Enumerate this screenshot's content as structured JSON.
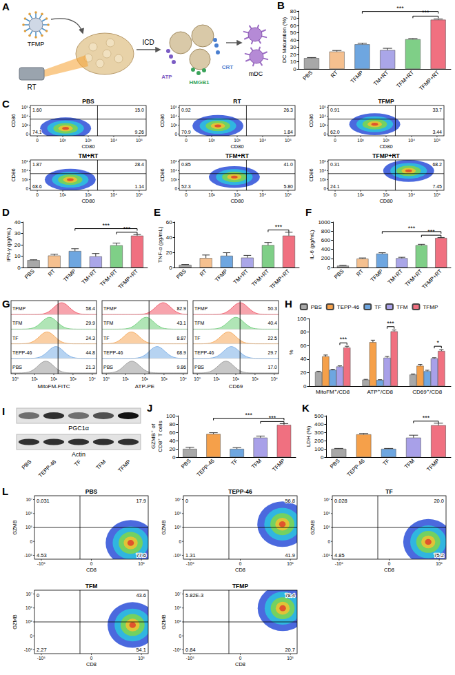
{
  "diagram": {
    "panel": "A",
    "particle": "TFMP",
    "radiation": "RT",
    "process": "ICD",
    "signals": [
      {
        "label": "ATP",
        "color": "#7b5cc4"
      },
      {
        "label": "HMGB1",
        "color": "#3aa35a"
      },
      {
        "label": "CRT",
        "color": "#4a7fd0"
      }
    ],
    "product": "mDC"
  },
  "chart_data": [
    {
      "panel": "B",
      "type": "bar",
      "y_label": "DC Maturation (%)",
      "categories": [
        "PBS",
        "RT",
        "TFMP",
        "TM+RT",
        "TFM+RT",
        "TFMP+RT"
      ],
      "values": [
        15,
        24,
        34,
        26,
        41,
        68
      ],
      "errors": [
        0.8,
        1.5,
        1.5,
        2.5,
        1,
        1
      ],
      "colors": [
        "#a8a8a8",
        "#f5c08f",
        "#6ea6e0",
        "#aaa6e8",
        "#7fcf87",
        "#f07080"
      ],
      "ylim": [
        0,
        80
      ],
      "yticks": [
        0,
        10,
        20,
        30,
        40,
        50,
        60,
        70,
        80
      ],
      "grid": false,
      "annotations": [
        {
          "text": "***",
          "from": "TFM+RT",
          "to": "TFMP+RT"
        },
        {
          "text": "***",
          "from": "TFMP",
          "to": "TFMP+RT"
        }
      ]
    },
    {
      "panel": "D",
      "type": "bar",
      "y_label": "IFN-γ (pg/mL)",
      "categories": [
        "PBS",
        "RT",
        "TFMP",
        "TM+RT",
        "TFM+RT",
        "TFMP+RT"
      ],
      "values": [
        6.5,
        10.5,
        14.5,
        9.8,
        19.5,
        28
      ],
      "errors": [
        0.3,
        1.2,
        2,
        2.5,
        2,
        1
      ],
      "colors": [
        "#a8a8a8",
        "#f5c08f",
        "#6ea6e0",
        "#aaa6e8",
        "#7fcf87",
        "#f07080"
      ],
      "ylim": [
        0,
        40
      ],
      "yticks": [
        0,
        10,
        20,
        30,
        40
      ],
      "grid": false,
      "annotations": [
        {
          "text": "***",
          "from": "TFM+RT",
          "to": "TFMP+RT"
        },
        {
          "text": "***",
          "from": "TFMP",
          "to": "TFMP+RT"
        }
      ]
    },
    {
      "panel": "E",
      "type": "bar",
      "y_label": "TNF-α (pg/mL)",
      "categories": [
        "PBS",
        "RT",
        "TFMP",
        "TM+RT",
        "TFM+RT",
        "TFMP+RT"
      ],
      "values": [
        3.5,
        12.5,
        15.5,
        13,
        29.5,
        42
      ],
      "errors": [
        0.5,
        4,
        4,
        3,
        3.5,
        4.5
      ],
      "colors": [
        "#a8a8a8",
        "#f5c08f",
        "#6ea6e0",
        "#aaa6e8",
        "#7fcf87",
        "#f07080"
      ],
      "ylim": [
        0,
        60
      ],
      "yticks": [
        0,
        20,
        40,
        60
      ],
      "grid": false,
      "annotations": [
        {
          "text": "***",
          "from": "TFM+RT",
          "to": "TFMP+RT"
        }
      ]
    },
    {
      "panel": "F",
      "type": "bar",
      "y_label": "IL-6 (pg/mL)",
      "categories": [
        "PBS",
        "RT",
        "TFMP",
        "TM+RT",
        "TFM+RT",
        "TFMP+RT"
      ],
      "values": [
        40,
        195,
        305,
        205,
        490,
        650
      ],
      "errors": [
        10,
        15,
        20,
        20,
        20,
        10
      ],
      "colors": [
        "#a8a8a8",
        "#f5c08f",
        "#6ea6e0",
        "#aaa6e8",
        "#7fcf87",
        "#f07080"
      ],
      "ylim": [
        0,
        1000
      ],
      "yticks": [
        0,
        200,
        400,
        600,
        800,
        1000
      ],
      "grid": false,
      "annotations": [
        {
          "text": "***",
          "from": "TFM+RT",
          "to": "TFMP+RT"
        },
        {
          "text": "***",
          "from": "TFMP",
          "to": "TFMP+RT"
        }
      ]
    },
    {
      "panel": "H",
      "type": "bar",
      "y_label": "%",
      "categories": [
        "MitoFM⁺/CD8",
        "ATP⁺/CD8",
        "CD69⁺/CD8"
      ],
      "series": [
        {
          "name": "PBS",
          "color": "#a8a8a8",
          "values": [
            21,
            9.5,
            17
          ],
          "errors": [
            1,
            0.5,
            1
          ]
        },
        {
          "name": "TEPP-46",
          "color": "#f5a04a",
          "values": [
            44,
            65,
            30
          ],
          "errors": [
            2,
            3,
            2
          ]
        },
        {
          "name": "TF",
          "color": "#6ea6e0",
          "values": [
            24,
            9,
            22
          ],
          "errors": [
            1,
            0.5,
            1.5
          ]
        },
        {
          "name": "TFM",
          "color": "#a8a0e8",
          "values": [
            29,
            42,
            41
          ],
          "errors": [
            1,
            2,
            1
          ]
        },
        {
          "name": "TFMP",
          "color": "#f07080",
          "values": [
            57,
            81,
            52
          ],
          "errors": [
            2,
            2,
            2
          ]
        }
      ],
      "legend": "top",
      "ylim": [
        0,
        100
      ],
      "yticks": [
        0,
        20,
        40,
        60,
        80,
        100
      ],
      "grid": false,
      "annotations": [
        {
          "text": "***",
          "category": "MitoFM⁺/CD8",
          "from": "TFM",
          "to": "TFMP"
        },
        {
          "text": "***",
          "category": "ATP⁺/CD8",
          "from": "TFM",
          "to": "TFMP"
        },
        {
          "text": "*",
          "category": "CD69⁺/CD8",
          "from": "TFM",
          "to": "TFMP"
        }
      ]
    },
    {
      "panel": "J",
      "type": "bar",
      "y_label": "GZMB⁺ of CD8⁺ T cells",
      "categories": [
        "PBS",
        "TEPP-46",
        "TF",
        "TFM",
        "TFMP"
      ],
      "values": [
        20,
        56,
        20,
        47,
        78
      ],
      "errors": [
        4,
        3,
        3,
        4,
        3
      ],
      "colors": [
        "#a8a8a8",
        "#f5a04a",
        "#6ea6e0",
        "#a8a0e8",
        "#f07080"
      ],
      "ylim": [
        0,
        100
      ],
      "yticks": [
        0,
        20,
        40,
        60,
        80,
        100
      ],
      "grid": false,
      "annotations": [
        {
          "text": "***",
          "from": "TFM",
          "to": "TFMP"
        },
        {
          "text": "***",
          "from": "TEPP-46",
          "to": "TFMP"
        }
      ]
    },
    {
      "panel": "K",
      "type": "bar",
      "y_label": "LDH (%)",
      "categories": [
        "PBS",
        "TEPP-46",
        "TF",
        "TFM",
        "TFMP"
      ],
      "values": [
        100,
        275,
        100,
        235,
        385
      ],
      "errors": [
        5,
        10,
        5,
        30,
        25
      ],
      "colors": [
        "#a8a8a8",
        "#f5a04a",
        "#6ea6e0",
        "#a8a0e8",
        "#f07080"
      ],
      "ylim": [
        0,
        500
      ],
      "yticks": [
        0,
        100,
        200,
        300,
        400,
        500
      ],
      "grid": false,
      "annotations": [
        {
          "text": "***",
          "from": "TFM",
          "to": "TFMP"
        }
      ]
    }
  ],
  "flow_cytometry": [
    {
      "panel": "C",
      "x_label": "CD80",
      "y_label": "CD86",
      "xticks": [
        "0",
        "10²",
        "10³",
        "10⁴",
        "10⁵"
      ],
      "yticks": [
        "0",
        "10³",
        "10⁴",
        "10⁵"
      ],
      "plots": [
        {
          "title": "PBS",
          "quadrants": {
            "UL": "1.60",
            "UR": "15.0",
            "LL": "74.1",
            "LR": "9.26"
          }
        },
        {
          "title": "RT",
          "quadrants": {
            "UL": "0.92",
            "UR": "26.3",
            "LL": "70.9",
            "LR": "1.84"
          }
        },
        {
          "title": "TFMP",
          "quadrants": {
            "UL": "0.91",
            "UR": "33.7",
            "LL": "62.0",
            "LR": "3.44"
          }
        },
        {
          "title": "TM+RT",
          "quadrants": {
            "UL": "1.87",
            "UR": "28.4",
            "LL": "68.6",
            "LR": "1.14"
          }
        },
        {
          "title": "TFM+RT",
          "quadrants": {
            "UL": "0.85",
            "UR": "41.0",
            "LL": "52.3",
            "LR": "5.80"
          }
        },
        {
          "title": "TFMP+RT",
          "quadrants": {
            "UL": "0.31",
            "UR": "68.2",
            "LL": "24.1",
            "LR": "7.45"
          }
        }
      ]
    },
    {
      "panel": "L",
      "x_label": "CD8",
      "y_label": "GZMB",
      "xticks": [
        "-10⁵",
        "0",
        "10⁵"
      ],
      "yticks": [
        "-10⁵",
        "0",
        "10⁵",
        "10⁶",
        "10⁷"
      ],
      "plots": [
        {
          "title": "PBS",
          "quadrants": {
            "UL": "0.031",
            "UR": "17.9",
            "LL": "4.53",
            "LR": "77.6"
          }
        },
        {
          "title": "TEPP-46",
          "quadrants": {
            "UL": "0",
            "UR": "56.8",
            "LL": "1.31",
            "LR": "41.9"
          }
        },
        {
          "title": "TF",
          "quadrants": {
            "UL": "0.028",
            "UR": "20.0",
            "LL": "4.85",
            "LR": "75.2"
          }
        },
        {
          "title": "TFM",
          "quadrants": {
            "UL": "0",
            "UR": "43.6",
            "LL": "2.27",
            "LR": "54.1"
          }
        },
        {
          "title": "TFMP",
          "quadrants": {
            "UL": "5.82E-3",
            "UR": "78.4",
            "LL": "0.84",
            "LR": "20.7"
          }
        }
      ]
    }
  ],
  "histograms": {
    "panel": "G",
    "rows": [
      "TFMP",
      "TFM",
      "TF",
      "TEPP-46",
      "PBS"
    ],
    "colors": [
      "#f05a6a",
      "#6fcf7a",
      "#f5a85a",
      "#7aaee6",
      "#9a9a9a"
    ],
    "xticks": [
      "10⁰",
      "10¹",
      "10²",
      "10³",
      "10⁴"
    ],
    "channels": [
      {
        "x_label": "MitoFM-FITC",
        "values": [
          "58.4",
          "29.9",
          "24.3",
          "44.8",
          "21.3"
        ]
      },
      {
        "x_label": "ATP-PE",
        "values": [
          "82.9",
          "43.1",
          "8.87",
          "68.9",
          "9.86"
        ]
      },
      {
        "x_label": "CD69",
        "values": [
          "50.3",
          "40.4",
          "22.5",
          "29.7",
          "17.0"
        ]
      }
    ]
  },
  "western_blot": {
    "panel": "I",
    "lanes": [
      "PBS",
      "TEPP-46",
      "TF",
      "TFM",
      "TFMP"
    ],
    "bands": [
      {
        "label": "PGC1α",
        "intensity": [
          0.55,
          0.85,
          0.55,
          0.7,
          1.0
        ]
      },
      {
        "label": "Actin",
        "intensity": [
          0.85,
          0.85,
          0.85,
          0.85,
          0.85
        ]
      }
    ]
  }
}
